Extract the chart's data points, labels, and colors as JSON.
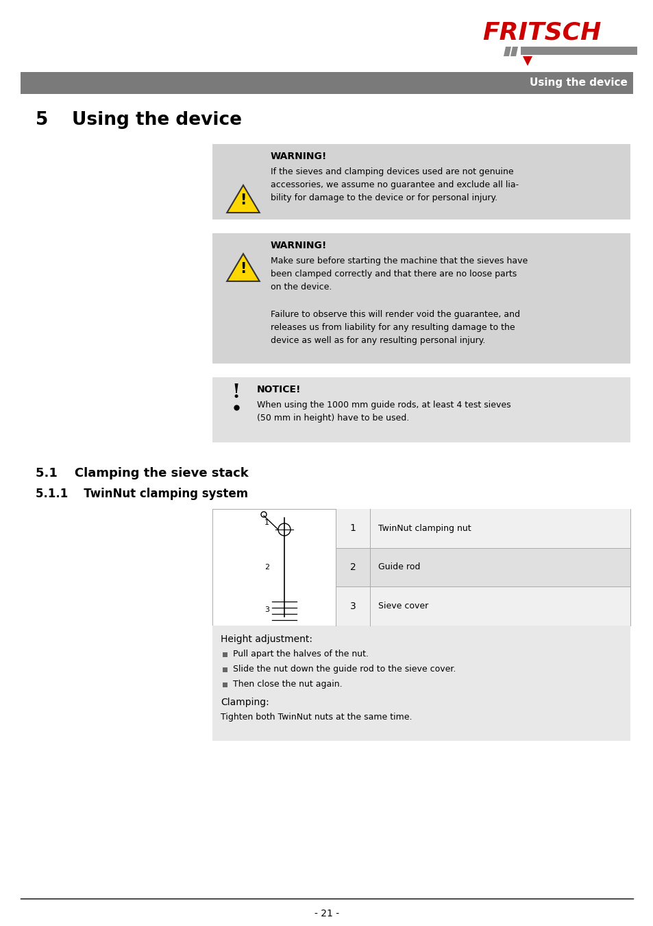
{
  "bg_color": "#ffffff",
  "header_bar_color": "#7a7a7a",
  "header_text": "Using the device",
  "fritsch_color": "#cc0000",
  "page_title_number": "5",
  "page_title_text": "Using the device",
  "warning_bg": "#d3d3d3",
  "notice_bg": "#e0e0e0",
  "warning1_title": "WARNING!",
  "warning1_body": "If the sieves and clamping devices used are not genuine\naccessories, we assume no guarantee and exclude all lia-\nbility for damage to the device or for personal injury.",
  "warning2_title": "WARNING!",
  "warning2_body1": "Make sure before starting the machine that the sieves have\nbeen clamped correctly and that there are no loose parts\non the device.",
  "warning2_body2": "Failure to observe this will render void the guarantee, and\nreleases us from liability for any resulting damage to the\ndevice as well as for any resulting personal injury.",
  "notice_title": "NOTICE!",
  "notice_body": "When using the 1000 mm guide rods, at least 4 test sieves\n(50 mm in height) have to be used.",
  "section51_title": "5.1    Clamping the sieve stack",
  "section511_title": "5.1.1    TwinNut clamping system",
  "table_row1_num": "1",
  "table_row1_text": "TwinNut clamping nut",
  "table_row2_num": "2",
  "table_row2_text": "Guide rod",
  "table_row3_num": "3",
  "table_row3_text": "Sieve cover",
  "table_bg_light": "#f0f0f0",
  "table_bg_dark": "#e0e0e0",
  "height_adj_title": "Height adjustment:",
  "bullet1": "Pull apart the halves of the nut.",
  "bullet2": "Slide the nut down the guide rod to the sieve cover.",
  "bullet3": "Then close the nut again.",
  "clamping_title": "Clamping:",
  "clamping_body": "Tighten both TwinNut nuts at the same time.",
  "content_bg": "#e8e8e8",
  "footer_text": "- 21 -"
}
